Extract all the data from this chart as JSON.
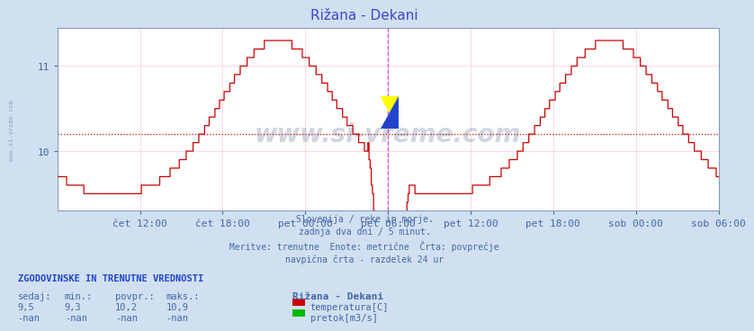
{
  "title": "Rižana - Dekani",
  "title_color": "#4444cc",
  "bg_color": "#d0e0f0",
  "plot_bg_color": "#ffffff",
  "grid_color": "#ffcccc",
  "line_color": "#cc0000",
  "avg_line_color": "#cc0000",
  "avg_line_value": 10.2,
  "vline_color": "#dd44dd",
  "ylim_min": 9.3,
  "ylim_max": 11.45,
  "ytick_positions": [
    10.0,
    11.0
  ],
  "ytick_labels": [
    "10",
    "11"
  ],
  "text_color": "#4466aa",
  "watermark_color": "#1a3a6a",
  "watermark_text": "www.si-vreme.com",
  "subtitle_lines": [
    "Slovenija / reke in morje.",
    "zadnja dva dni / 5 minut.",
    "Meritve: trenutne  Enote: metrične  Črta: povprečje",
    "navpična črta - razdelek 24 ur"
  ],
  "stats_header": "ZGODOVINSKE IN TRENUTNE VREDNOSTI",
  "col_headers": [
    "sedaj:",
    "min.:",
    "povpr.:",
    "maks.:"
  ],
  "row1_vals": [
    "9,5",
    "9,3",
    "10,2",
    "10,9"
  ],
  "row2_vals": [
    "-nan",
    "-nan",
    "-nan",
    "-nan"
  ],
  "station_name": "Rižana - Dekani",
  "legend1_label": "temperatura[C]",
  "legend1_color": "#cc0000",
  "legend2_label": "pretok[m3/s]",
  "legend2_color": "#00bb00",
  "tick_labels": [
    "čet 12:00",
    "čet 18:00",
    "pet 00:00",
    "pet 06:00",
    "pet 12:00",
    "pet 18:00",
    "sob 00:00",
    "sob 06:00"
  ],
  "tick_positions": [
    6,
    12,
    18,
    24,
    30,
    36,
    42,
    48
  ],
  "xlim": [
    0,
    48
  ],
  "n_points": 576,
  "total_hours": 48,
  "vline_hour": 24,
  "side_watermark": "www.si-vreme.com"
}
